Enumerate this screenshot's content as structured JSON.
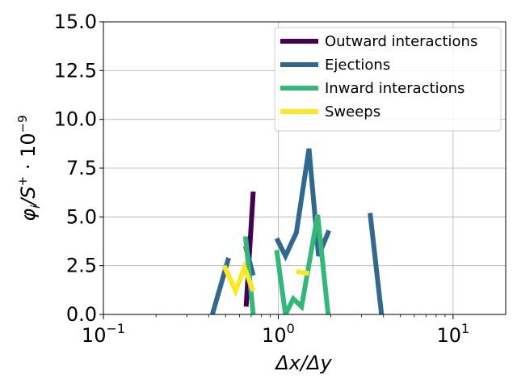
{
  "chart_data": {
    "type": "line",
    "xscale": "log",
    "xlim": [
      0.1,
      20
    ],
    "ylim": [
      0,
      15
    ],
    "grid": true,
    "legend_position": "top-right",
    "xlabel": "Δx/Δy",
    "ylabel": "φ_i/S^+ · 10^-9",
    "ylabel_parts": {
      "main": "φ",
      "sub": "i",
      "mid": "/S",
      "sup1": "+",
      "dot": " · 10",
      "sup2": "−9"
    },
    "xticks": [
      {
        "value": 0.1,
        "base": "10",
        "exp": "−1"
      },
      {
        "value": 1,
        "base": "10",
        "exp": "0"
      },
      {
        "value": 10,
        "base": "10",
        "exp": "1"
      }
    ],
    "yticks": [
      {
        "value": 0,
        "label": "0.0"
      },
      {
        "value": 2.5,
        "label": "2.5"
      },
      {
        "value": 5,
        "label": "5.0"
      },
      {
        "value": 7.5,
        "label": "7.5"
      },
      {
        "value": 10,
        "label": "10.0"
      },
      {
        "value": 12.5,
        "label": "12.5"
      },
      {
        "value": 15,
        "label": "15.0"
      }
    ],
    "series": [
      {
        "name": "Outward interactions",
        "color": "#440154",
        "segments": [
          [
            [
              0.655,
              0.4
            ],
            [
              0.72,
              6.3
            ]
          ]
        ]
      },
      {
        "name": "Ejections",
        "color": "#31688e",
        "segments": [
          [
            [
              0.42,
              0.0
            ],
            [
              0.52,
              2.9
            ]
          ],
          [
            [
              0.65,
              3.5
            ],
            [
              0.72,
              2.0
            ]
          ],
          [
            [
              0.98,
              3.9
            ],
            [
              1.1,
              3.0
            ],
            [
              1.27,
              4.2
            ],
            [
              1.5,
              8.5
            ],
            [
              1.7,
              3.0
            ],
            [
              1.95,
              4.3
            ]
          ],
          [
            [
              3.35,
              5.2
            ],
            [
              3.9,
              0.0
            ]
          ]
        ]
      },
      {
        "name": "Inward interactions",
        "color": "#35b779",
        "segments": [
          [
            [
              0.65,
              4.0
            ],
            [
              0.72,
              0.0
            ]
          ],
          [
            [
              0.98,
              3.3
            ],
            [
              1.1,
              0.0
            ],
            [
              1.22,
              0.8
            ],
            [
              1.36,
              0.4
            ],
            [
              1.68,
              5.1
            ],
            [
              1.93,
              0.0
            ]
          ]
        ]
      },
      {
        "name": "Sweeps",
        "color": "#fde725",
        "segments": [
          [
            [
              0.49,
              2.5
            ],
            [
              0.57,
              1.2
            ],
            [
              0.64,
              2.4
            ],
            [
              0.72,
              1.2
            ]
          ],
          [
            [
              1.27,
              2.2
            ],
            [
              1.5,
              2.1
            ]
          ]
        ]
      }
    ]
  }
}
